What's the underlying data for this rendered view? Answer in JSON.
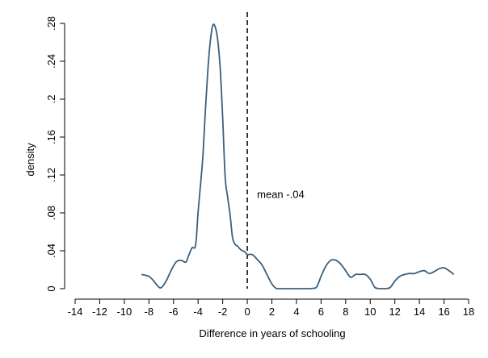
{
  "colors": {
    "background": "#ffffff",
    "line": "#3a5f7d",
    "axis": "#000000",
    "reference_line": "#000000"
  },
  "chart_data": {
    "type": "line",
    "title": "",
    "xlabel": "Difference in years of schooling",
    "ylabel": "density",
    "xlim": [
      -14,
      18
    ],
    "ylim": [
      0,
      0.28
    ],
    "grid": false,
    "legend": "none",
    "x_ticks": [
      -14,
      -12,
      -10,
      -8,
      -6,
      -4,
      -2,
      0,
      2,
      4,
      6,
      8,
      10,
      12,
      14,
      16,
      18
    ],
    "x_tick_labels": [
      "-14",
      "-12",
      "-10",
      "-8",
      "-6",
      "-4",
      "-2",
      "0",
      "2",
      "4",
      "6",
      "8",
      "10",
      "12",
      "14",
      "16",
      "18"
    ],
    "y_ticks": [
      0,
      0.04,
      0.08,
      0.12,
      0.16,
      0.2,
      0.24,
      0.28
    ],
    "y_tick_labels": [
      "0",
      ".04",
      ".08",
      ".12",
      ".16",
      ".2",
      ".24",
      ".28"
    ],
    "reference_line": {
      "x": 0,
      "style": "dashed"
    },
    "annotations": [
      {
        "text": "mean -.04",
        "x": 0.4,
        "y": 0.1
      }
    ],
    "series": [
      {
        "x": [
          -8.6,
          -8.0,
          -7.6,
          -7.3,
          -7.0,
          -6.6,
          -6.2,
          -5.8,
          -5.4,
          -5.0,
          -4.8,
          -4.5,
          -4.2,
          -4.0,
          -3.8,
          -3.6,
          -3.4,
          -3.2,
          -3.0,
          -2.8,
          -2.6,
          -2.4,
          -2.2,
          -2.0,
          -1.8,
          -1.6,
          -1.4,
          -1.2,
          -1.0,
          -0.8,
          -0.6,
          -0.4,
          -0.2,
          0.0,
          0.4,
          0.8,
          1.2,
          1.6,
          2.0,
          2.4,
          3.0,
          4.0,
          5.0,
          5.6,
          6.0,
          6.4,
          6.8,
          7.2,
          7.6,
          8.0,
          8.4,
          8.8,
          9.2,
          9.6,
          10.0,
          10.4,
          10.8,
          11.2,
          11.6,
          12.0,
          12.4,
          12.8,
          13.2,
          13.6,
          14.0,
          14.4,
          14.8,
          15.2,
          15.6,
          16.0,
          16.4,
          16.8
        ],
        "y": [
          0.015,
          0.013,
          0.008,
          0.003,
          0.001,
          0.008,
          0.019,
          0.028,
          0.03,
          0.028,
          0.034,
          0.043,
          0.046,
          0.081,
          0.11,
          0.142,
          0.19,
          0.232,
          0.262,
          0.278,
          0.276,
          0.262,
          0.232,
          0.18,
          0.118,
          0.097,
          0.078,
          0.054,
          0.047,
          0.045,
          0.042,
          0.04,
          0.039,
          0.036,
          0.036,
          0.031,
          0.025,
          0.015,
          0.005,
          0.0,
          0.0,
          0.0,
          0.0,
          0.001,
          0.013,
          0.024,
          0.03,
          0.03,
          0.026,
          0.019,
          0.012,
          0.015,
          0.015,
          0.015,
          0.01,
          0.001,
          0.0,
          0.0,
          0.001,
          0.008,
          0.013,
          0.015,
          0.016,
          0.016,
          0.018,
          0.019,
          0.016,
          0.018,
          0.021,
          0.022,
          0.019,
          0.015
        ]
      }
    ]
  }
}
